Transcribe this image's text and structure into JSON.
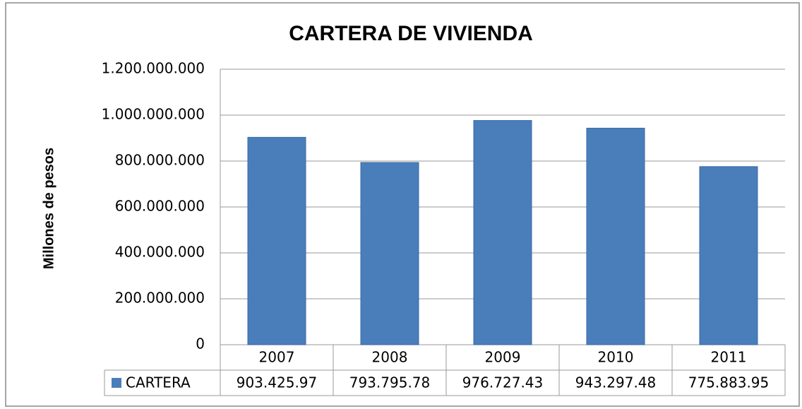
{
  "chart_data": {
    "type": "bar",
    "title": "CARTERA DE  VIVIENDA",
    "y_label": "Millones de pesos",
    "categories": [
      "2007",
      "2008",
      "2009",
      "2010",
      "2011"
    ],
    "series": [
      {
        "name": "CARTERA",
        "color": "#4a7ebb",
        "values": [
          903425970,
          793795780,
          976727430,
          943297480,
          775883950
        ],
        "value_labels": [
          "903.425.97",
          "793.795.78",
          "976.727.43",
          "943.297.48",
          "775.883.95"
        ]
      }
    ],
    "ylim": [
      0,
      1200000000
    ],
    "yticks": [
      0,
      {
        "value": 200000000,
        "label": "200.000.000"
      },
      {
        "value": 400000000,
        "label": "400.000.000"
      },
      {
        "value": 600000000,
        "label": "600.000.000"
      },
      {
        "value": 800000000,
        "label": "800.000.000"
      },
      {
        "value": 1000000000,
        "label": "1.000.000.000"
      },
      {
        "value": 1200000000,
        "label": "1.200.000.000"
      }
    ],
    "grid": true
  }
}
